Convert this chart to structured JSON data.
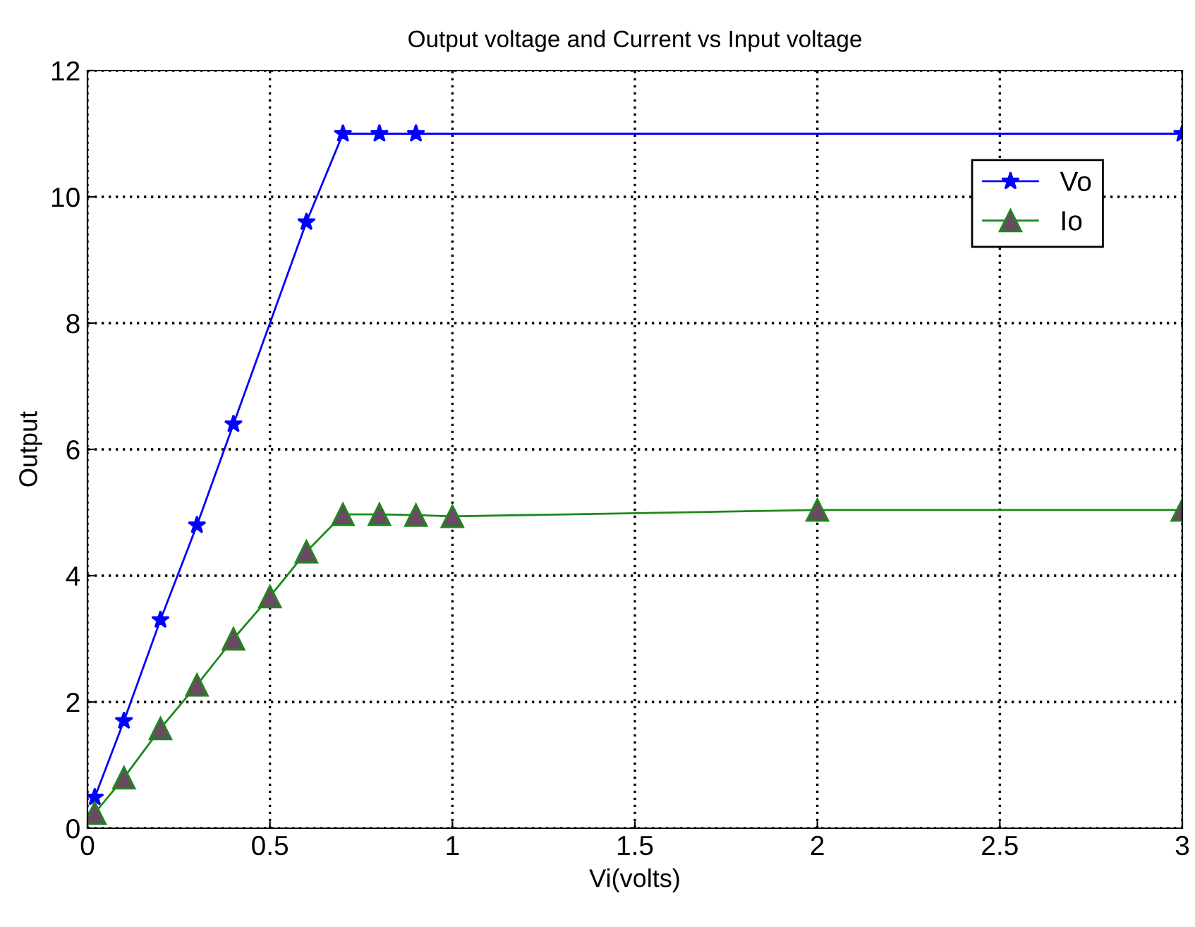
{
  "chart_data": {
    "type": "line",
    "title": "Output voltage and Current vs Input voltage",
    "xlabel": "Vi(volts)",
    "ylabel": "Output",
    "xlim": [
      0,
      3
    ],
    "xticks": [
      0,
      0.5,
      1,
      1.5,
      2,
      2.5,
      3
    ],
    "ylim": [
      0,
      12
    ],
    "yticks": [
      0,
      2,
      4,
      6,
      8,
      10,
      12
    ],
    "grid": true,
    "legend": "top right",
    "line_style": "solid",
    "series": [
      {
        "name": "Vo",
        "color": "#0000ff",
        "marker": "star",
        "x": [
          0.02,
          0.1,
          0.2,
          0.3,
          0.4,
          0.6,
          0.7,
          0.8,
          0.9,
          3
        ],
        "values": [
          0.49,
          1.7,
          3.3,
          4.8,
          6.4,
          9.6,
          11,
          11,
          11,
          11
        ]
      },
      {
        "name": "Io",
        "color": "#1a8a1a",
        "marker": "triangle",
        "x": [
          0.02,
          0.1,
          0.2,
          0.3,
          0.4,
          0.5,
          0.6,
          0.7,
          0.8,
          0.9,
          1,
          2,
          3
        ],
        "values": [
          0.24,
          0.8,
          1.58,
          2.27,
          3.0,
          3.67,
          4.38,
          4.97,
          4.97,
          4.96,
          4.94,
          5.04,
          5.04
        ]
      }
    ]
  }
}
